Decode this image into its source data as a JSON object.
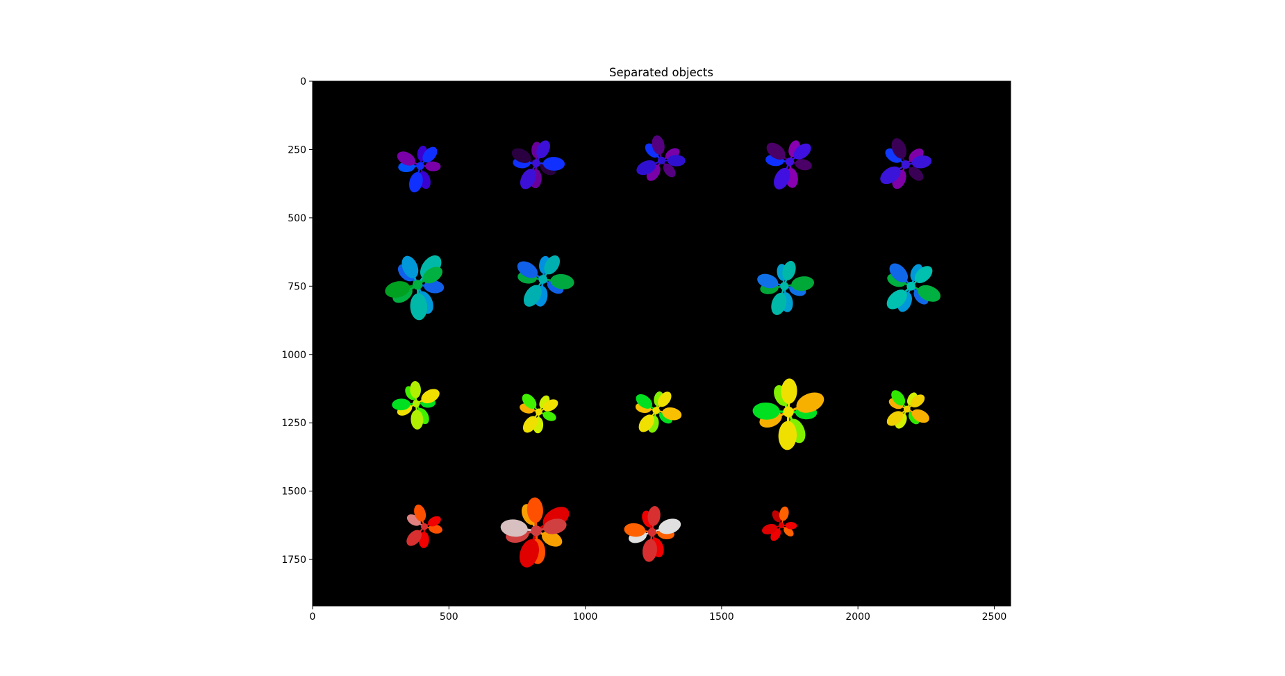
{
  "chart_data": {
    "type": "image",
    "title": "Separated objects",
    "xlabel": "",
    "ylabel": "",
    "xlim": [
      0,
      2560
    ],
    "ylim": [
      1920,
      0
    ],
    "x_ticks": [
      0,
      500,
      1000,
      1500,
      2000,
      2500
    ],
    "y_ticks": [
      0,
      250,
      500,
      750,
      1000,
      1250,
      1500,
      1750
    ],
    "x_tick_labels": [
      "0",
      "500",
      "1000",
      "1500",
      "2000",
      "2500"
    ],
    "y_tick_labels": [
      "0",
      "250",
      "500",
      "750",
      "1000",
      "1250",
      "1500",
      "1750"
    ],
    "background": "#000000",
    "grid": false,
    "objects": [
      {
        "row": 1,
        "col": 1,
        "x": 395,
        "y": 310,
        "size": 100,
        "leaves": 7,
        "rot": 10,
        "colors": [
          "#7a00a8",
          "#3a00d0",
          "#1030ff",
          "#0050ff"
        ]
      },
      {
        "row": 1,
        "col": 2,
        "x": 820,
        "y": 300,
        "size": 105,
        "leaves": 8,
        "rot": 35,
        "colors": [
          "#2a0040",
          "#6a009a",
          "#3d10d8",
          "#1030ff"
        ]
      },
      {
        "row": 1,
        "col": 3,
        "x": 1280,
        "y": 290,
        "size": 100,
        "leaves": 7,
        "rot": 60,
        "colors": [
          "#550080",
          "#7a00a8",
          "#3010d0",
          "#1030ff"
        ]
      },
      {
        "row": 1,
        "col": 4,
        "x": 1750,
        "y": 295,
        "size": 110,
        "leaves": 7,
        "rot": 20,
        "colors": [
          "#4a0066",
          "#8800b0",
          "#4010e0",
          "#1030ff"
        ]
      },
      {
        "row": 1,
        "col": 5,
        "x": 2175,
        "y": 305,
        "size": 110,
        "leaves": 7,
        "rot": 50,
        "colors": [
          "#3a0055",
          "#8000a8",
          "#3a14d8",
          "#1038ff"
        ]
      },
      {
        "row": 2,
        "col": 1,
        "x": 385,
        "y": 745,
        "size": 130,
        "leaves": 9,
        "rot": 15,
        "colors": [
          "#1060e8",
          "#0098d8",
          "#00b8a8",
          "#00b040",
          "#00a020"
        ]
      },
      {
        "row": 2,
        "col": 2,
        "x": 845,
        "y": 725,
        "size": 115,
        "leaves": 8,
        "rot": 40,
        "colors": [
          "#1060e8",
          "#0090e0",
          "#00b0b0",
          "#00a840"
        ]
      },
      {
        "row": 2,
        "col": 4,
        "x": 1730,
        "y": 750,
        "size": 110,
        "leaves": 8,
        "rot": 25,
        "colors": [
          "#1070e8",
          "#00a0d0",
          "#00b8a8",
          "#00a838"
        ]
      },
      {
        "row": 2,
        "col": 5,
        "x": 2195,
        "y": 750,
        "size": 115,
        "leaves": 8,
        "rot": 55,
        "colors": [
          "#1068e8",
          "#0098d8",
          "#00c0b0",
          "#00b040"
        ]
      },
      {
        "row": 3,
        "col": 1,
        "x": 380,
        "y": 1180,
        "size": 95,
        "leaves": 8,
        "rot": 5,
        "colors": [
          "#00e020",
          "#40f000",
          "#b0f000",
          "#f0e000"
        ]
      },
      {
        "row": 3,
        "col": 2,
        "x": 830,
        "y": 1210,
        "size": 90,
        "leaves": 7,
        "rot": 30,
        "colors": [
          "#40f000",
          "#d0f000",
          "#f0e000",
          "#f8b000"
        ]
      },
      {
        "row": 3,
        "col": 3,
        "x": 1260,
        "y": 1205,
        "size": 95,
        "leaves": 8,
        "rot": 45,
        "colors": [
          "#00e020",
          "#80f000",
          "#f0e000",
          "#f8c000"
        ]
      },
      {
        "row": 3,
        "col": 4,
        "x": 1745,
        "y": 1210,
        "size": 140,
        "leaves": 8,
        "rot": 10,
        "colors": [
          "#00e020",
          "#80f000",
          "#f0e000",
          "#f8b000"
        ]
      },
      {
        "row": 3,
        "col": 5,
        "x": 2180,
        "y": 1200,
        "size": 90,
        "leaves": 8,
        "rot": 60,
        "colors": [
          "#30e800",
          "#d0f000",
          "#f0d000",
          "#f8b000"
        ]
      },
      {
        "row": 4,
        "col": 1,
        "x": 410,
        "y": 1630,
        "size": 90,
        "leaves": 6,
        "rot": 20,
        "colors": [
          "#ff5000",
          "#f00000",
          "#d83030",
          "#e08080"
        ]
      },
      {
        "row": 4,
        "col": 2,
        "x": 820,
        "y": 1645,
        "size": 140,
        "leaves": 9,
        "rot": 35,
        "colors": [
          "#f8a000",
          "#ff5000",
          "#e00000",
          "#d04040",
          "#d8c0c0"
        ]
      },
      {
        "row": 4,
        "col": 3,
        "x": 1245,
        "y": 1650,
        "size": 110,
        "leaves": 8,
        "rot": 15,
        "colors": [
          "#ff6000",
          "#f00000",
          "#d83030",
          "#e0e0e0"
        ]
      },
      {
        "row": 4,
        "col": 4,
        "x": 1720,
        "y": 1625,
        "size": 75,
        "leaves": 6,
        "rot": 50,
        "colors": [
          "#ff6000",
          "#f00000",
          "#e00000",
          "#c00000"
        ]
      }
    ]
  }
}
